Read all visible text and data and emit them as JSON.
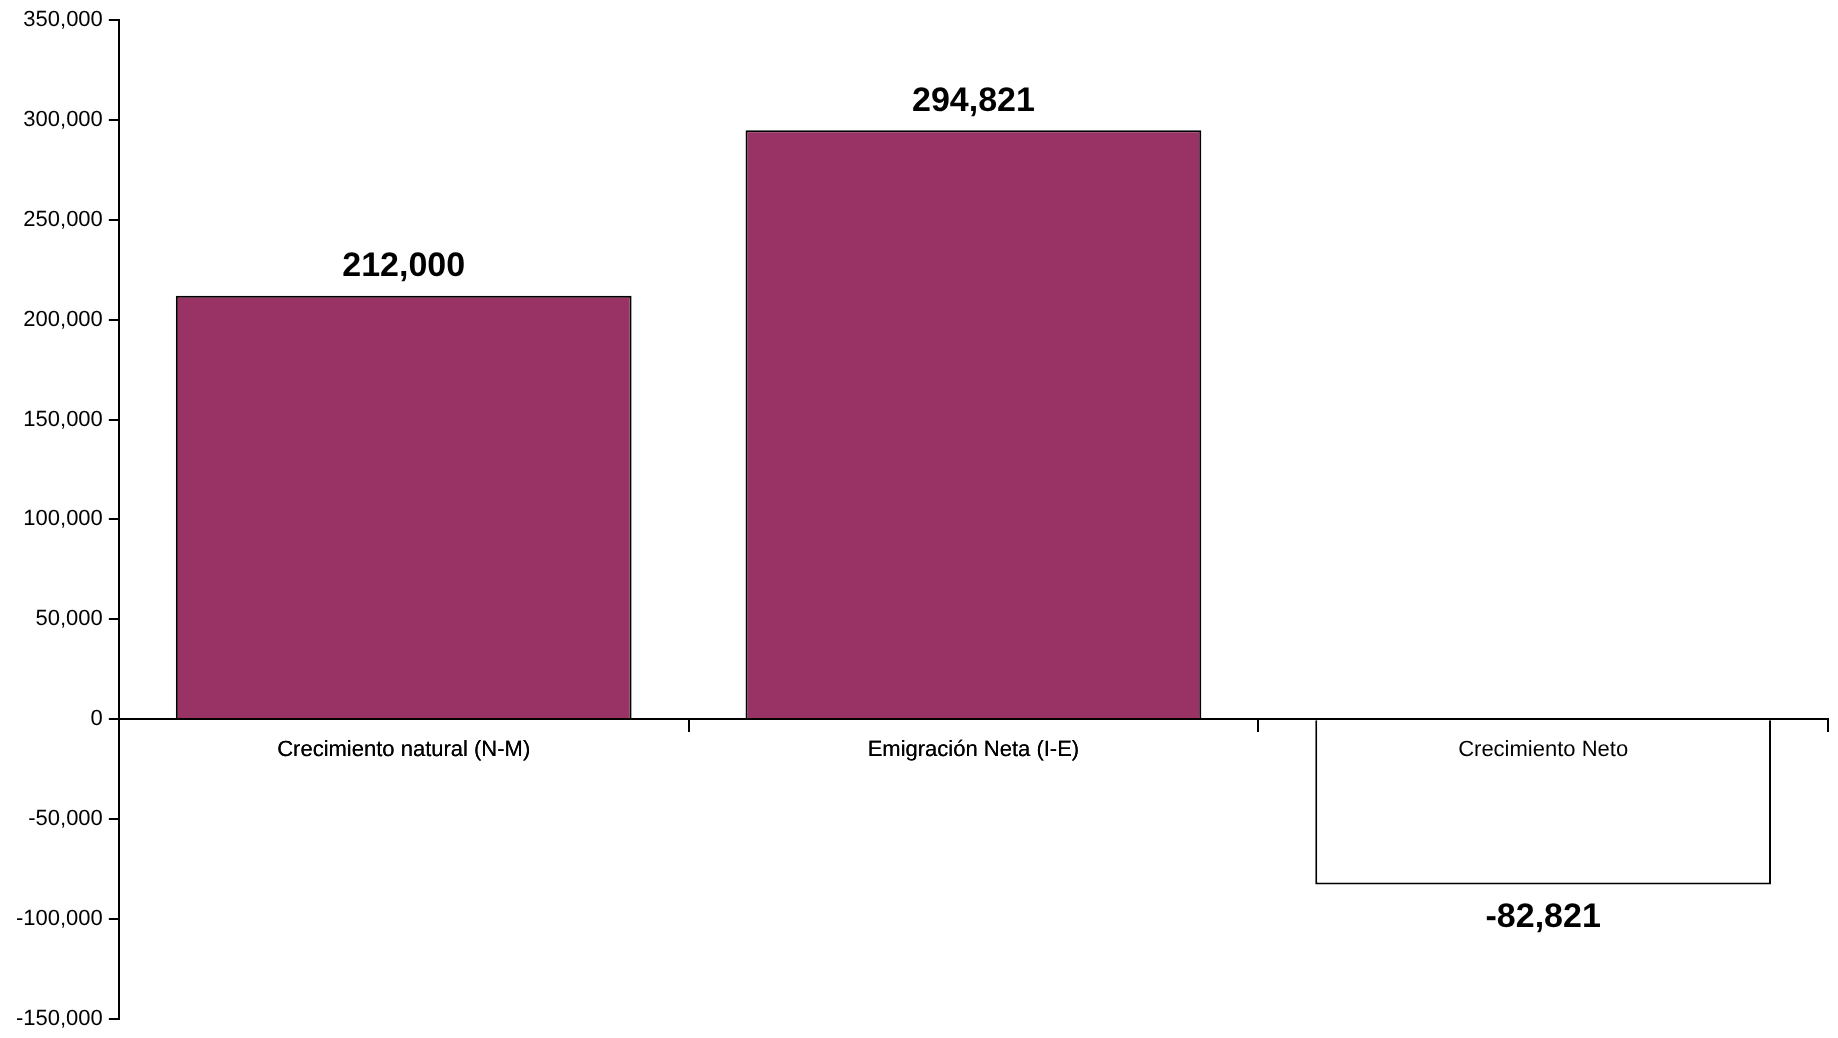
{
  "chart_data": {
    "type": "bar",
    "categories": [
      "Crecimiento natural (N-M)",
      "Emigración Neta (I-E)",
      "Crecimiento Neto"
    ],
    "values": [
      212000,
      294821,
      -82821
    ],
    "value_labels": [
      "212,000",
      "294,821",
      "-82,821"
    ],
    "colors": [
      "#993366",
      "#993366",
      "#ffffff"
    ],
    "ylim": [
      -150000,
      350000
    ],
    "yticks": [
      {
        "value": -150000,
        "label": "-150,000"
      },
      {
        "value": -100000,
        "label": "-100,000"
      },
      {
        "value": -50000,
        "label": "-50,000"
      },
      0,
      {
        "value": 50000,
        "label": "50,000"
      },
      {
        "value": 100000,
        "label": "100,000"
      },
      {
        "value": 150000,
        "label": "150,000"
      },
      {
        "value": 200000,
        "label": "200,000"
      },
      {
        "value": 250000,
        "label": "250,000"
      },
      {
        "value": 300000,
        "label": "300,000"
      },
      {
        "value": 350000,
        "label": "350,000"
      }
    ],
    "grid": false,
    "legend": false,
    "data_labels": true
  }
}
